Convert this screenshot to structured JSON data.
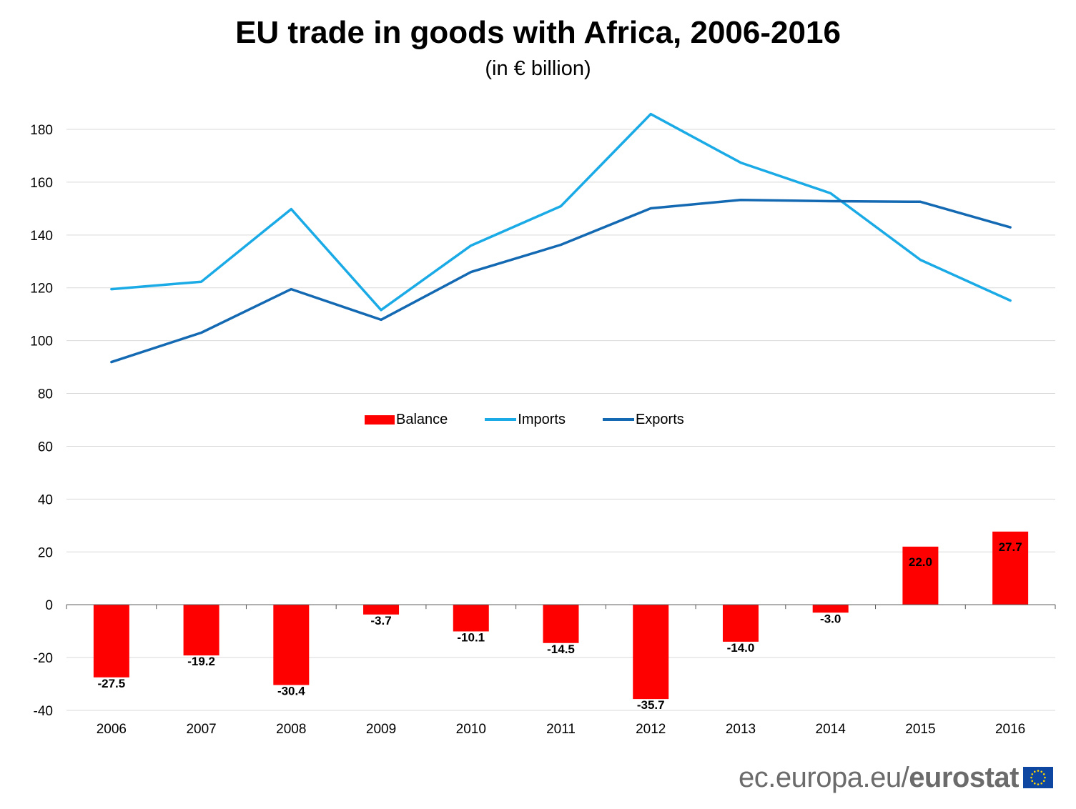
{
  "chart_data": {
    "type": "bar",
    "title": "EU trade in goods with Africa, 2006-2016",
    "subtitle": "(in € billion)",
    "categories": [
      "2006",
      "2007",
      "2008",
      "2009",
      "2010",
      "2011",
      "2012",
      "2013",
      "2014",
      "2015",
      "2016"
    ],
    "ylim": [
      -40,
      190
    ],
    "yticks": [
      180,
      160,
      140,
      120,
      100,
      80,
      60,
      40,
      20,
      0,
      -20,
      -40
    ],
    "grid": true,
    "legend_position": "center",
    "series": [
      {
        "name": "Balance",
        "type": "bar",
        "color": "#ff0000",
        "values": [
          -27.5,
          -19.2,
          -30.4,
          -3.7,
          -10.1,
          -14.5,
          -35.7,
          -14.0,
          -3.0,
          22.0,
          27.7
        ],
        "labels": [
          "-27.5",
          "-19.2",
          "-30.4",
          "-3.7",
          "-10.1",
          "-14.5",
          "-35.7",
          "-14.0",
          "-3.0",
          "22.0",
          "27.7"
        ]
      },
      {
        "name": "Imports",
        "type": "line",
        "color": "#1aaae6",
        "values": [
          119.5,
          122.3,
          149.8,
          111.6,
          136.0,
          150.9,
          185.8,
          167.4,
          155.8,
          130.6,
          115.2
        ]
      },
      {
        "name": "Exports",
        "type": "line",
        "color": "#1469b3",
        "values": [
          91.9,
          103.0,
          119.5,
          107.9,
          126.0,
          136.3,
          150.1,
          153.3,
          152.8,
          152.6,
          142.9
        ]
      }
    ]
  },
  "footer": {
    "url": "ec.europa.eu/",
    "brand": "eurostat",
    "flag_icon": "eu-flag-icon",
    "flag_color": "#0e47a1",
    "star_color": "#ffd700"
  }
}
